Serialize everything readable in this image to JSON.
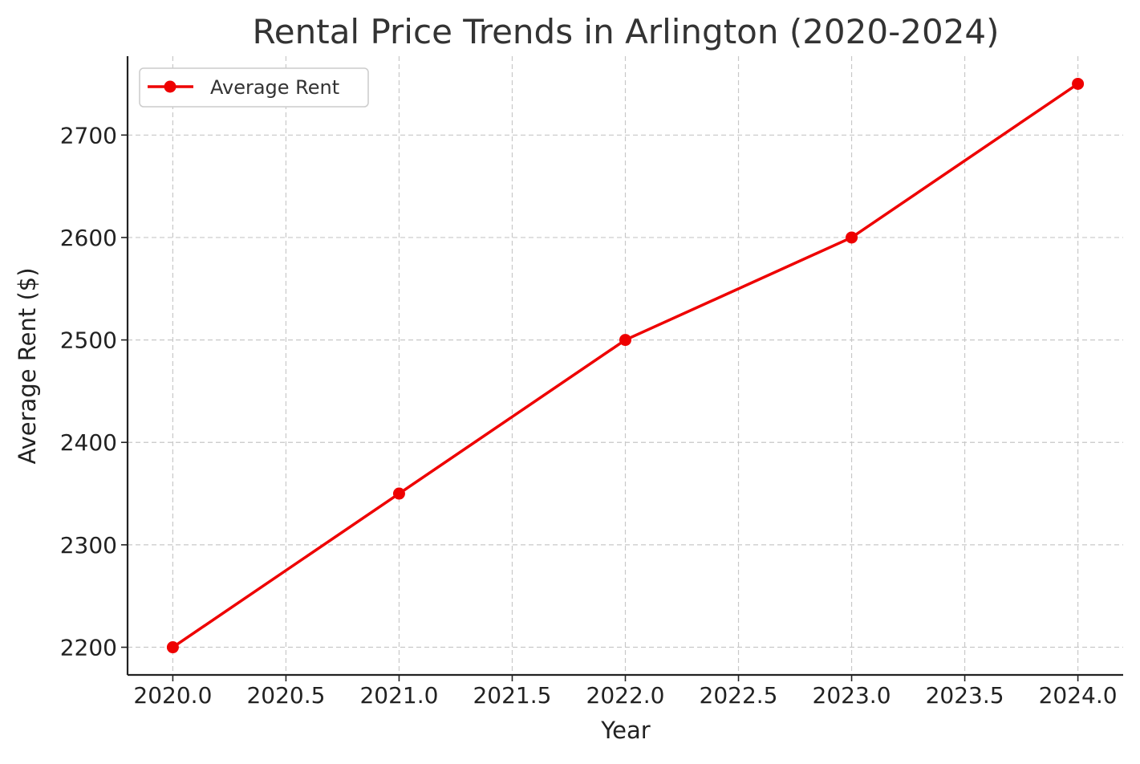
{
  "chart_data": {
    "type": "line",
    "title": "Rental Price Trends in Arlington (2020-2024)",
    "xlabel": "Year",
    "ylabel": "Average Rent ($)",
    "x": [
      2020,
      2021,
      2022,
      2023,
      2024
    ],
    "series": [
      {
        "name": "Average Rent",
        "values": [
          2200,
          2350,
          2500,
          2600,
          2750
        ],
        "color": "#ee0000",
        "marker": "circle"
      }
    ],
    "xlim": [
      2019.8,
      2024.2
    ],
    "ylim": [
      2173,
      2777
    ],
    "xticks": [
      2020.0,
      2020.5,
      2021.0,
      2021.5,
      2022.0,
      2022.5,
      2023.0,
      2023.5,
      2024.0
    ],
    "xtick_labels": [
      "2020.0",
      "2020.5",
      "2021.0",
      "2021.5",
      "2022.0",
      "2022.5",
      "2023.0",
      "2023.5",
      "2024.0"
    ],
    "yticks": [
      2200,
      2300,
      2400,
      2500,
      2600,
      2700
    ],
    "ytick_labels": [
      "2200",
      "2300",
      "2400",
      "2500",
      "2600",
      "2700"
    ],
    "grid": true,
    "legend_position": "top-left"
  }
}
